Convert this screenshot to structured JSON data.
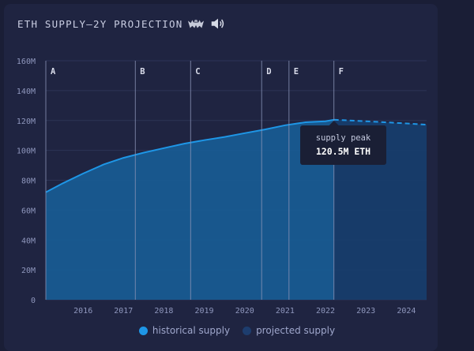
{
  "chart_data": {
    "type": "area",
    "title": "ETH SUPPLY—2Y PROJECTION",
    "xlabel": "",
    "ylabel": "",
    "ylim": [
      0,
      160
    ],
    "y_unit": "M",
    "y_ticks": [
      "0",
      "20M",
      "40M",
      "60M",
      "80M",
      "100M",
      "120M",
      "140M",
      "160M"
    ],
    "x_ticks": [
      "2016",
      "2017",
      "2018",
      "2019",
      "2020",
      "2021",
      "2022",
      "2023",
      "2024"
    ],
    "x_range": [
      "2015-07-30",
      "2024-12-31"
    ],
    "grid": true,
    "series": [
      {
        "name": "historical supply",
        "style": "solid",
        "color": "#1e96e6",
        "points": [
          [
            "2015-07-30",
            72.0
          ],
          [
            "2016-01-01",
            78.0
          ],
          [
            "2016-07-01",
            84.5
          ],
          [
            "2017-01-01",
            90.5
          ],
          [
            "2017-07-01",
            95.0
          ],
          [
            "2018-01-01",
            98.5
          ],
          [
            "2018-07-01",
            101.5
          ],
          [
            "2019-01-01",
            104.5
          ],
          [
            "2019-07-01",
            106.8
          ],
          [
            "2020-01-01",
            109.0
          ],
          [
            "2020-07-01",
            111.5
          ],
          [
            "2021-01-01",
            114.0
          ],
          [
            "2021-07-01",
            116.8
          ],
          [
            "2022-01-01",
            118.8
          ],
          [
            "2022-07-01",
            119.5
          ],
          [
            "2022-09-15",
            120.5
          ]
        ]
      },
      {
        "name": "projected supply",
        "style": "dashed",
        "color": "#1d3d6e",
        "points": [
          [
            "2022-09-15",
            120.5
          ],
          [
            "2023-07-01",
            119.5
          ],
          [
            "2024-07-01",
            118.0
          ],
          [
            "2024-12-31",
            117.2
          ]
        ]
      }
    ],
    "markers": [
      {
        "label": "A",
        "date": "2015-07-30"
      },
      {
        "label": "B",
        "date": "2017-10-16"
      },
      {
        "label": "C",
        "date": "2019-02-28"
      },
      {
        "label": "D",
        "date": "2020-12-01"
      },
      {
        "label": "E",
        "date": "2021-08-05"
      },
      {
        "label": "F",
        "date": "2022-09-15"
      }
    ],
    "annotation": {
      "title": "supply peak",
      "value": "120.5M ETH",
      "date": "2022-09-15"
    },
    "legend": "bottom-center"
  },
  "colors": {
    "area": "#175d96",
    "projected_area": "#173d6b",
    "line": "#1e96e6",
    "grid": "#2d3456",
    "marker_line": "#8a93b6",
    "tooltip_bg": "#1a1f35"
  },
  "icons": [
    "bat-emoji-icon",
    "speaker-emoji-icon"
  ]
}
